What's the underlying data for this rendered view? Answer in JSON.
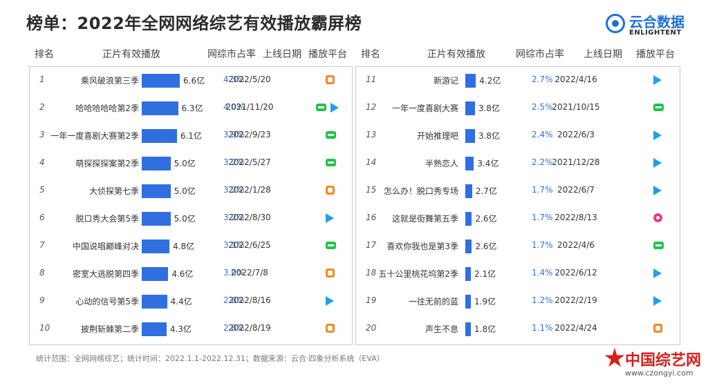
{
  "title": "榜单：2022年全网网络综艺有效播放霸屏榜",
  "logo": {
    "cn": "云合数据",
    "en": "ENLIGHTENT"
  },
  "columns": [
    "排名",
    "正片有效播放",
    "网综市占率",
    "上线日期",
    "播放平台"
  ],
  "footer": "统计范围：全网网络综艺；统计时间：2022.1.1-2022.12.31；数据来源：云合·四象分析系统（EVA）",
  "watermark": {
    "text": "中国综艺网",
    "url": "www.czongyi.com"
  },
  "colors": {
    "bar": "#2f6fe0",
    "share": "#2f6fe0"
  },
  "platform_icons": {
    "mg": "mango-tv-icon",
    "iq": "iqiyi-icon",
    "tx": "tencent-video-icon",
    "yk": "youku-icon"
  },
  "chart_data": {
    "type": "table",
    "value_unit": "亿",
    "rows": [
      {
        "rank": "1",
        "name": "乘风破浪第三季",
        "value": 6.6,
        "value_label": "6.6亿",
        "share": "4.3%",
        "date": "2022/5/20",
        "platforms": [
          "mg"
        ]
      },
      {
        "rank": "2",
        "name": "哈哈哈哈哈第2季",
        "value": 6.3,
        "value_label": "6.3亿",
        "share": "4.0%",
        "date": "2021/11/20",
        "platforms": [
          "iq",
          "tx"
        ]
      },
      {
        "rank": "3",
        "name": "一年一度喜剧大赛第2季",
        "value": 6.1,
        "value_label": "6.1亿",
        "share": "3.9%",
        "date": "2022/9/23",
        "platforms": [
          "iq"
        ]
      },
      {
        "rank": "4",
        "name": "萌探探探案第2季",
        "value": 5.0,
        "value_label": "5.0亿",
        "share": "3.2%",
        "date": "2022/5/27",
        "platforms": [
          "iq"
        ]
      },
      {
        "rank": "5",
        "name": "大侦探第七季",
        "value": 5.0,
        "value_label": "5.0亿",
        "share": "3.2%",
        "date": "2022/1/28",
        "platforms": [
          "mg"
        ]
      },
      {
        "rank": "6",
        "name": "脱口秀大会第5季",
        "value": 5.0,
        "value_label": "5.0亿",
        "share": "3.2%",
        "date": "2022/8/30",
        "platforms": [
          "tx"
        ]
      },
      {
        "rank": "7",
        "name": "中国说唱巅峰对决",
        "value": 4.8,
        "value_label": "4.8亿",
        "share": "3.1%",
        "date": "2022/6/25",
        "platforms": [
          "iq"
        ]
      },
      {
        "rank": "8",
        "name": "密室大逃脱第四季",
        "value": 4.6,
        "value_label": "4.6亿",
        "share": "3.0%",
        "date": "2022/7/8",
        "platforms": [
          "mg"
        ]
      },
      {
        "rank": "9",
        "name": "心动的信号第5季",
        "value": 4.4,
        "value_label": "4.4亿",
        "share": "2.8%",
        "date": "2022/8/16",
        "platforms": [
          "tx"
        ]
      },
      {
        "rank": "10",
        "name": "披荆斩棘第二季",
        "value": 4.3,
        "value_label": "4.3亿",
        "share": "2.8%",
        "date": "2022/8/19",
        "platforms": [
          "mg"
        ]
      },
      {
        "rank": "11",
        "name": "新游记",
        "value": 4.2,
        "value_label": "4.2亿",
        "share": "2.7%",
        "date": "2022/4/16",
        "platforms": [
          "tx"
        ]
      },
      {
        "rank": "12",
        "name": "一年一度喜剧大赛",
        "value": 3.8,
        "value_label": "3.8亿",
        "share": "2.5%",
        "date": "2021/10/15",
        "platforms": [
          "iq"
        ]
      },
      {
        "rank": "13",
        "name": "开始推理吧",
        "value": 3.8,
        "value_label": "3.8亿",
        "share": "2.4%",
        "date": "2022/6/3",
        "platforms": [
          "tx"
        ]
      },
      {
        "rank": "14",
        "name": "半熟恋人",
        "value": 3.4,
        "value_label": "3.4亿",
        "share": "2.2%",
        "date": "2021/12/28",
        "platforms": [
          "tx"
        ]
      },
      {
        "rank": "15",
        "name": "怎么办！脱口秀专场",
        "value": 2.7,
        "value_label": "2.7亿",
        "share": "1.7%",
        "date": "2022/6/7",
        "platforms": [
          "tx"
        ]
      },
      {
        "rank": "16",
        "name": "这就是街舞第五季",
        "value": 2.6,
        "value_label": "2.6亿",
        "share": "1.7%",
        "date": "2022/8/13",
        "platforms": [
          "yk"
        ]
      },
      {
        "rank": "17",
        "name": "喜欢你我也是第3季",
        "value": 2.6,
        "value_label": "2.6亿",
        "share": "1.7%",
        "date": "2022/4/6",
        "platforms": [
          "iq"
        ]
      },
      {
        "rank": "18",
        "name": "五十公里桃花坞第2季",
        "value": 2.1,
        "value_label": "2.1亿",
        "share": "1.4%",
        "date": "2022/6/12",
        "platforms": [
          "tx"
        ]
      },
      {
        "rank": "19",
        "name": "一往无前的蓝",
        "value": 1.9,
        "value_label": "1.9亿",
        "share": "1.2%",
        "date": "2022/2/19",
        "platforms": [
          "tx"
        ]
      },
      {
        "rank": "20",
        "name": "声生不息",
        "value": 1.8,
        "value_label": "1.8亿",
        "share": "1.1%",
        "date": "2022/4/24",
        "platforms": [
          "mg"
        ]
      }
    ]
  }
}
